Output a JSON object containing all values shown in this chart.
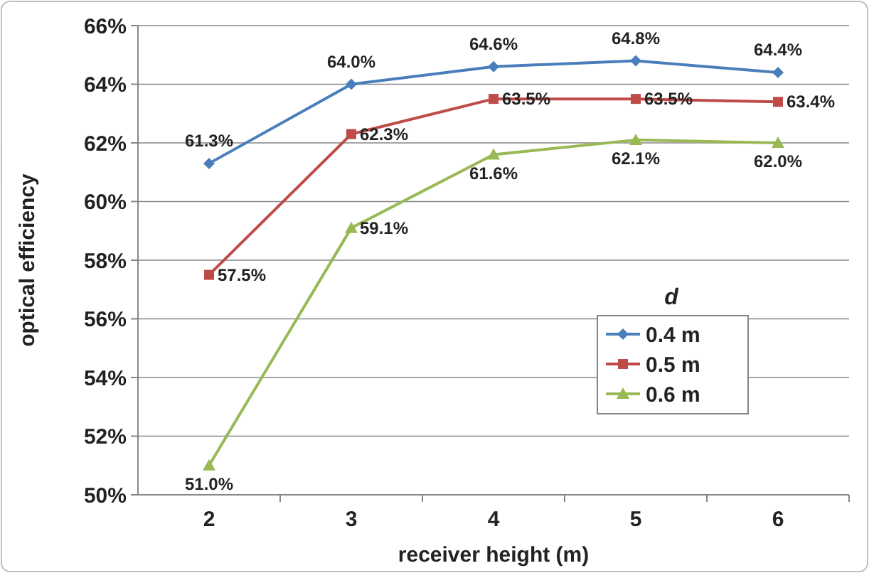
{
  "chart_data": {
    "type": "line",
    "xlabel": "receiver height (m)",
    "ylabel": "optical efficiency",
    "legend_title": "d",
    "categories": [
      "2",
      "3",
      "4",
      "5",
      "6"
    ],
    "ylim": [
      50,
      66
    ],
    "yticks": [
      {
        "value": 50,
        "label": "50%"
      },
      {
        "value": 52,
        "label": "52%"
      },
      {
        "value": 54,
        "label": "54%"
      },
      {
        "value": 56,
        "label": "56%"
      },
      {
        "value": 58,
        "label": "58%"
      },
      {
        "value": 60,
        "label": "60%"
      },
      {
        "value": 62,
        "label": "62%"
      },
      {
        "value": 64,
        "label": "64%"
      },
      {
        "value": 66,
        "label": "66%"
      }
    ],
    "grid": "y",
    "legend": "bottom right",
    "series": [
      {
        "name": "0.4 m",
        "color": "#4a7ebb",
        "marker": "diamond",
        "values": [
          61.3,
          64.0,
          64.6,
          64.8,
          64.4
        ],
        "value_labels": [
          "61.3%",
          "64.0%",
          "64.6%",
          "64.8%",
          "64.4%"
        ]
      },
      {
        "name": "0.5 m",
        "color": "#be4b48",
        "marker": "square",
        "values": [
          57.5,
          62.3,
          63.5,
          63.5,
          63.4
        ],
        "value_labels": [
          "57.5%",
          "62.3%",
          "63.5%",
          "63.5%",
          "63.4%"
        ]
      },
      {
        "name": "0.6 m",
        "color": "#98b954",
        "marker": "triangle",
        "values": [
          51.0,
          59.1,
          61.6,
          62.1,
          62.0
        ],
        "value_labels": [
          "51.0%",
          "59.1%",
          "61.6%",
          "62.1%",
          "62.0%"
        ]
      }
    ]
  }
}
